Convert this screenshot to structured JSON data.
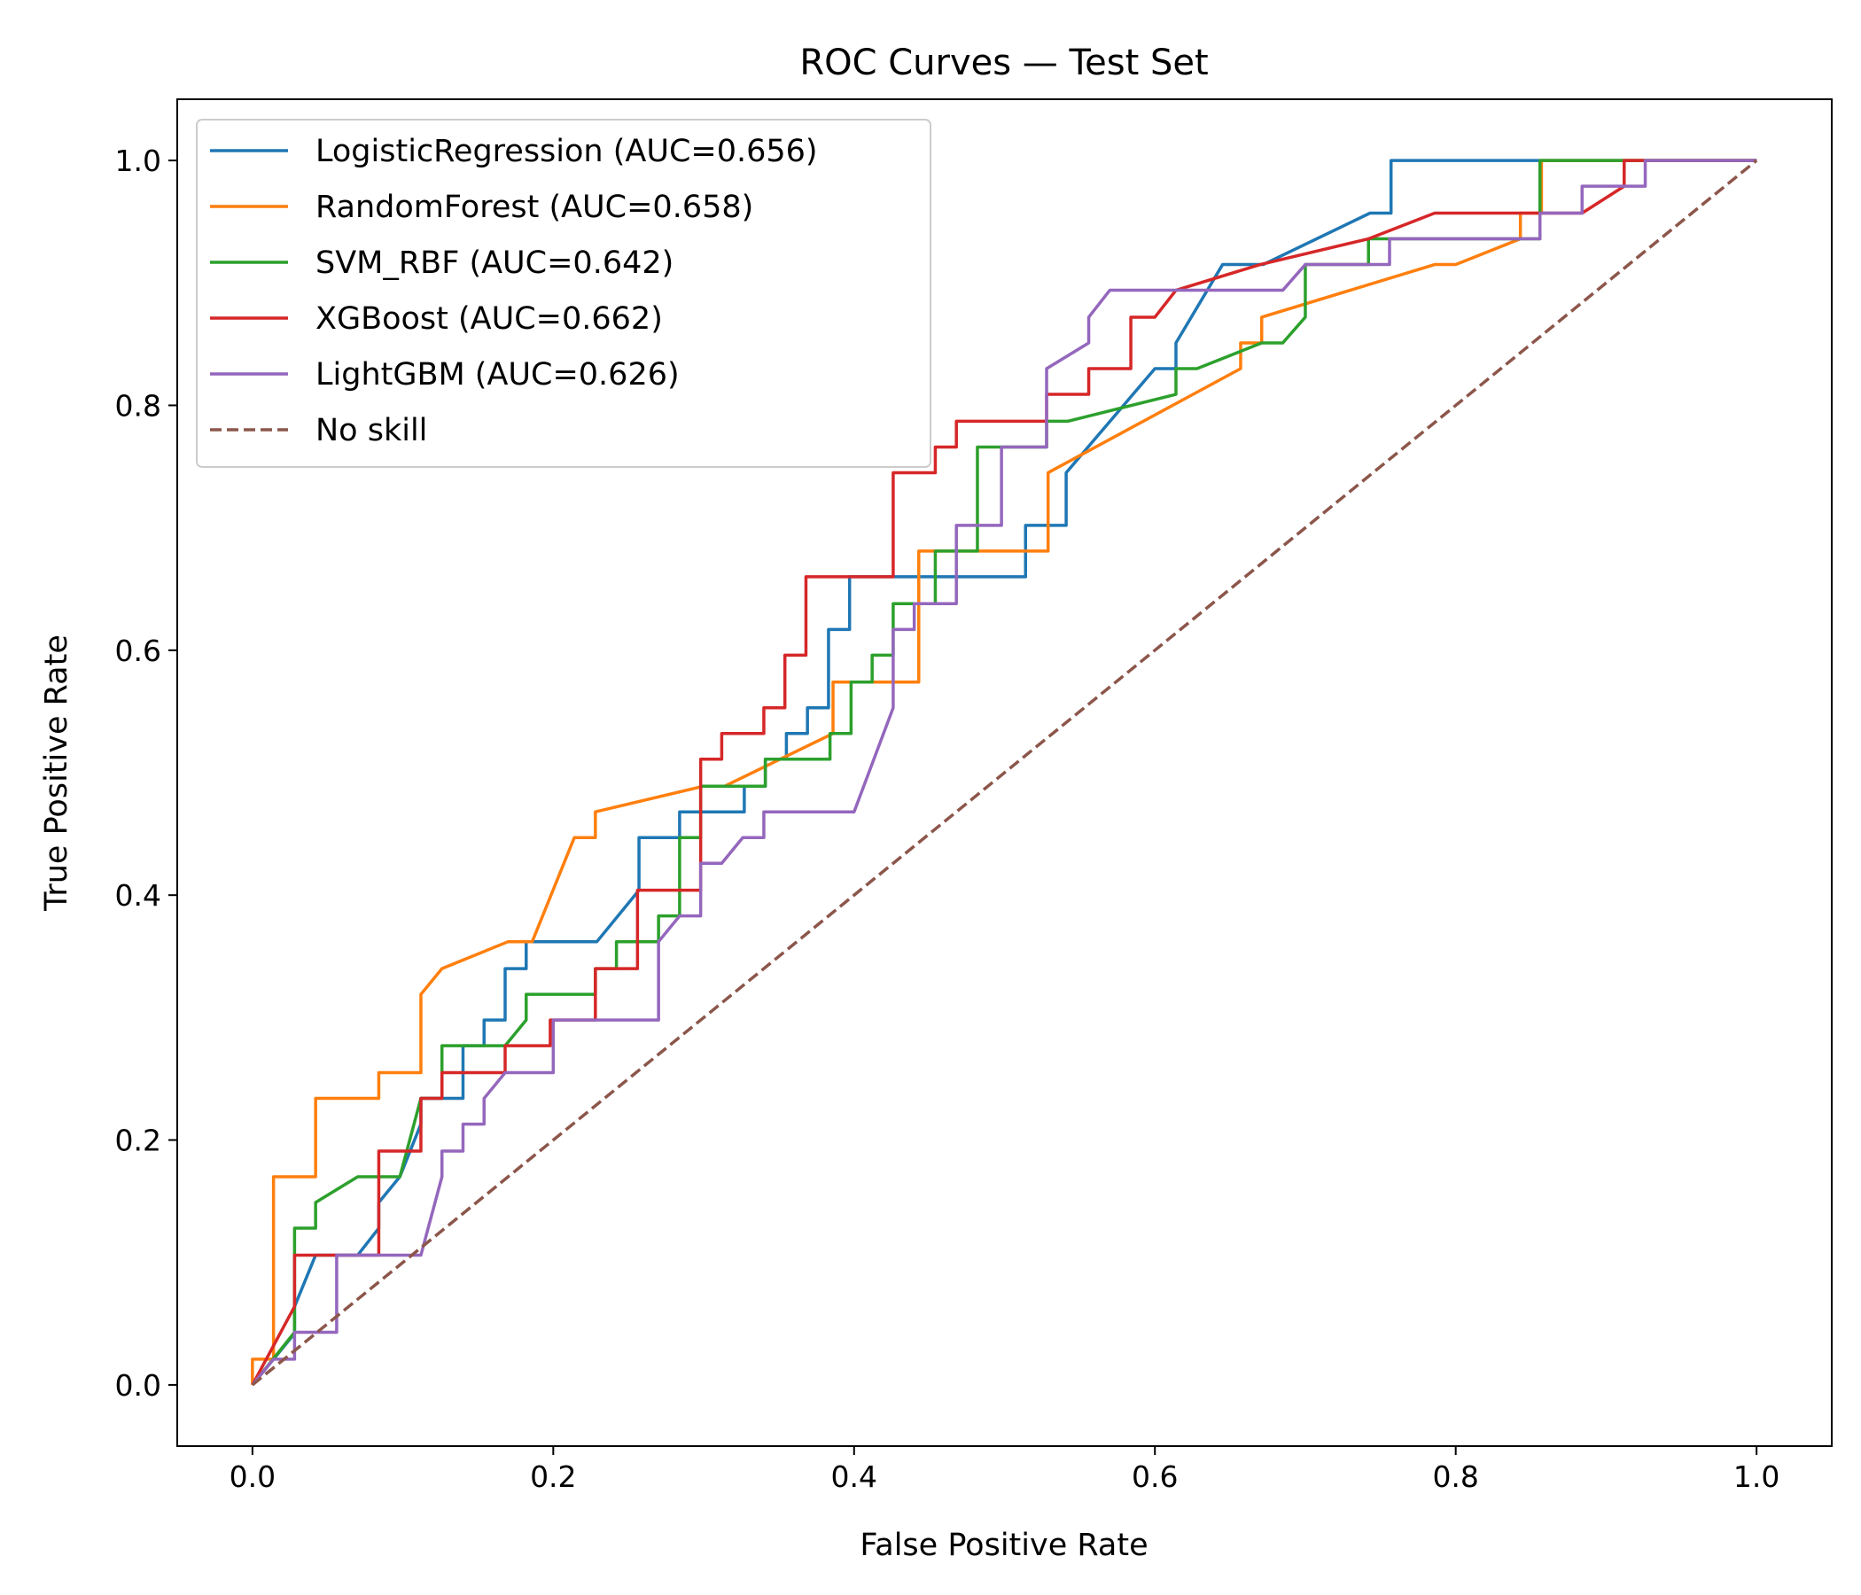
{
  "chart_data": {
    "type": "line",
    "title": "ROC Curves — Test Set",
    "xlabel": "False Positive Rate",
    "ylabel": "True Positive Rate",
    "xlim": [
      -0.05,
      1.05
    ],
    "ylim": [
      -0.05,
      1.05
    ],
    "xticks": [
      "0.0",
      "0.2",
      "0.4",
      "0.6",
      "0.8",
      "1.0"
    ],
    "yticks": [
      "0.0",
      "0.2",
      "0.4",
      "0.6",
      "0.8",
      "1.0"
    ],
    "legend_position": "upper-left",
    "grid": false,
    "series": [
      {
        "name": "LogisticRegression (AUC=0.656)",
        "color": "#1f77b4",
        "dash": "solid",
        "points": [
          [
            0,
            0
          ],
          [
            0.014,
            0.021
          ],
          [
            0.028,
            0.042
          ],
          [
            0.028,
            0.064
          ],
          [
            0.042,
            0.106
          ],
          [
            0.07,
            0.106
          ],
          [
            0.084,
            0.128
          ],
          [
            0.084,
            0.149
          ],
          [
            0.098,
            0.17
          ],
          [
            0.112,
            0.213
          ],
          [
            0.112,
            0.234
          ],
          [
            0.14,
            0.234
          ],
          [
            0.14,
            0.277
          ],
          [
            0.154,
            0.277
          ],
          [
            0.154,
            0.298
          ],
          [
            0.168,
            0.298
          ],
          [
            0.168,
            0.34
          ],
          [
            0.182,
            0.34
          ],
          [
            0.182,
            0.362
          ],
          [
            0.229,
            0.362
          ],
          [
            0.257,
            0.404
          ],
          [
            0.257,
            0.447
          ],
          [
            0.284,
            0.447
          ],
          [
            0.284,
            0.468
          ],
          [
            0.327,
            0.468
          ],
          [
            0.327,
            0.489
          ],
          [
            0.341,
            0.489
          ],
          [
            0.341,
            0.511
          ],
          [
            0.355,
            0.511
          ],
          [
            0.355,
            0.532
          ],
          [
            0.369,
            0.532
          ],
          [
            0.369,
            0.553
          ],
          [
            0.383,
            0.553
          ],
          [
            0.383,
            0.617
          ],
          [
            0.397,
            0.617
          ],
          [
            0.397,
            0.66
          ],
          [
            0.514,
            0.66
          ],
          [
            0.514,
            0.702
          ],
          [
            0.541,
            0.702
          ],
          [
            0.541,
            0.745
          ],
          [
            0.6,
            0.83
          ],
          [
            0.614,
            0.83
          ],
          [
            0.614,
            0.851
          ],
          [
            0.645,
            0.915
          ],
          [
            0.672,
            0.915
          ],
          [
            0.743,
            0.957
          ],
          [
            0.757,
            0.957
          ],
          [
            0.757,
            1.0
          ],
          [
            1.0,
            1.0
          ]
        ]
      },
      {
        "name": "RandomForest (AUC=0.658)",
        "color": "#ff7f0e",
        "dash": "solid",
        "points": [
          [
            0,
            0
          ],
          [
            0,
            0.021
          ],
          [
            0.014,
            0.021
          ],
          [
            0.014,
            0.17
          ],
          [
            0.042,
            0.17
          ],
          [
            0.042,
            0.234
          ],
          [
            0.084,
            0.234
          ],
          [
            0.084,
            0.255
          ],
          [
            0.112,
            0.255
          ],
          [
            0.112,
            0.319
          ],
          [
            0.126,
            0.34
          ],
          [
            0.17,
            0.362
          ],
          [
            0.186,
            0.362
          ],
          [
            0.214,
            0.447
          ],
          [
            0.228,
            0.447
          ],
          [
            0.228,
            0.468
          ],
          [
            0.3,
            0.489
          ],
          [
            0.314,
            0.489
          ],
          [
            0.386,
            0.532
          ],
          [
            0.386,
            0.574
          ],
          [
            0.443,
            0.574
          ],
          [
            0.443,
            0.681
          ],
          [
            0.529,
            0.681
          ],
          [
            0.529,
            0.745
          ],
          [
            0.657,
            0.83
          ],
          [
            0.657,
            0.851
          ],
          [
            0.671,
            0.851
          ],
          [
            0.671,
            0.872
          ],
          [
            0.786,
            0.915
          ],
          [
            0.8,
            0.915
          ],
          [
            0.843,
            0.936
          ],
          [
            0.843,
            0.957
          ],
          [
            0.857,
            0.957
          ],
          [
            0.857,
            1.0
          ],
          [
            1.0,
            1.0
          ]
        ]
      },
      {
        "name": "SVM_RBF (AUC=0.642)",
        "color": "#2ca02c",
        "dash": "solid",
        "points": [
          [
            0,
            0
          ],
          [
            0.028,
            0.043
          ],
          [
            0.028,
            0.128
          ],
          [
            0.042,
            0.128
          ],
          [
            0.042,
            0.149
          ],
          [
            0.07,
            0.17
          ],
          [
            0.098,
            0.17
          ],
          [
            0.112,
            0.234
          ],
          [
            0.126,
            0.234
          ],
          [
            0.126,
            0.277
          ],
          [
            0.168,
            0.277
          ],
          [
            0.182,
            0.298
          ],
          [
            0.182,
            0.319
          ],
          [
            0.228,
            0.319
          ],
          [
            0.228,
            0.34
          ],
          [
            0.242,
            0.34
          ],
          [
            0.242,
            0.362
          ],
          [
            0.27,
            0.362
          ],
          [
            0.27,
            0.383
          ],
          [
            0.284,
            0.383
          ],
          [
            0.284,
            0.447
          ],
          [
            0.298,
            0.447
          ],
          [
            0.298,
            0.489
          ],
          [
            0.341,
            0.489
          ],
          [
            0.341,
            0.511
          ],
          [
            0.384,
            0.511
          ],
          [
            0.384,
            0.532
          ],
          [
            0.398,
            0.532
          ],
          [
            0.398,
            0.574
          ],
          [
            0.412,
            0.574
          ],
          [
            0.412,
            0.596
          ],
          [
            0.426,
            0.596
          ],
          [
            0.426,
            0.638
          ],
          [
            0.454,
            0.638
          ],
          [
            0.454,
            0.681
          ],
          [
            0.482,
            0.681
          ],
          [
            0.482,
            0.766
          ],
          [
            0.528,
            0.766
          ],
          [
            0.528,
            0.787
          ],
          [
            0.542,
            0.787
          ],
          [
            0.614,
            0.809
          ],
          [
            0.614,
            0.83
          ],
          [
            0.628,
            0.83
          ],
          [
            0.671,
            0.851
          ],
          [
            0.685,
            0.851
          ],
          [
            0.7,
            0.872
          ],
          [
            0.7,
            0.915
          ],
          [
            0.742,
            0.915
          ],
          [
            0.742,
            0.936
          ],
          [
            0.856,
            0.936
          ],
          [
            0.856,
            1.0
          ],
          [
            1.0,
            1.0
          ]
        ]
      },
      {
        "name": "XGBoost (AUC=0.662)",
        "color": "#d62728",
        "dash": "solid",
        "points": [
          [
            0,
            0
          ],
          [
            0.028,
            0.064
          ],
          [
            0.028,
            0.106
          ],
          [
            0.084,
            0.106
          ],
          [
            0.084,
            0.191
          ],
          [
            0.112,
            0.191
          ],
          [
            0.112,
            0.234
          ],
          [
            0.126,
            0.234
          ],
          [
            0.126,
            0.255
          ],
          [
            0.168,
            0.255
          ],
          [
            0.168,
            0.277
          ],
          [
            0.198,
            0.277
          ],
          [
            0.198,
            0.298
          ],
          [
            0.228,
            0.298
          ],
          [
            0.228,
            0.34
          ],
          [
            0.256,
            0.34
          ],
          [
            0.256,
            0.404
          ],
          [
            0.298,
            0.404
          ],
          [
            0.298,
            0.511
          ],
          [
            0.312,
            0.511
          ],
          [
            0.312,
            0.532
          ],
          [
            0.34,
            0.532
          ],
          [
            0.34,
            0.553
          ],
          [
            0.354,
            0.553
          ],
          [
            0.354,
            0.596
          ],
          [
            0.368,
            0.596
          ],
          [
            0.368,
            0.66
          ],
          [
            0.426,
            0.66
          ],
          [
            0.426,
            0.745
          ],
          [
            0.454,
            0.745
          ],
          [
            0.454,
            0.766
          ],
          [
            0.468,
            0.766
          ],
          [
            0.468,
            0.787
          ],
          [
            0.528,
            0.787
          ],
          [
            0.528,
            0.809
          ],
          [
            0.556,
            0.809
          ],
          [
            0.556,
            0.83
          ],
          [
            0.584,
            0.83
          ],
          [
            0.584,
            0.872
          ],
          [
            0.6,
            0.872
          ],
          [
            0.614,
            0.894
          ],
          [
            0.67,
            0.915
          ],
          [
            0.742,
            0.936
          ],
          [
            0.786,
            0.957
          ],
          [
            0.884,
            0.957
          ],
          [
            0.912,
            0.979
          ],
          [
            0.912,
            1.0
          ],
          [
            1.0,
            1.0
          ]
        ]
      },
      {
        "name": "LightGBM (AUC=0.626)",
        "color": "#9467bd",
        "dash": "solid",
        "points": [
          [
            0,
            0
          ],
          [
            0.014,
            0.021
          ],
          [
            0.028,
            0.021
          ],
          [
            0.028,
            0.043
          ],
          [
            0.056,
            0.043
          ],
          [
            0.056,
            0.106
          ],
          [
            0.112,
            0.106
          ],
          [
            0.126,
            0.17
          ],
          [
            0.126,
            0.191
          ],
          [
            0.14,
            0.191
          ],
          [
            0.14,
            0.213
          ],
          [
            0.154,
            0.213
          ],
          [
            0.154,
            0.234
          ],
          [
            0.168,
            0.255
          ],
          [
            0.2,
            0.255
          ],
          [
            0.2,
            0.298
          ],
          [
            0.27,
            0.298
          ],
          [
            0.27,
            0.362
          ],
          [
            0.284,
            0.383
          ],
          [
            0.298,
            0.383
          ],
          [
            0.298,
            0.426
          ],
          [
            0.312,
            0.426
          ],
          [
            0.326,
            0.447
          ],
          [
            0.34,
            0.447
          ],
          [
            0.34,
            0.468
          ],
          [
            0.4,
            0.468
          ],
          [
            0.426,
            0.553
          ],
          [
            0.426,
            0.617
          ],
          [
            0.44,
            0.617
          ],
          [
            0.44,
            0.638
          ],
          [
            0.468,
            0.638
          ],
          [
            0.468,
            0.702
          ],
          [
            0.498,
            0.702
          ],
          [
            0.498,
            0.766
          ],
          [
            0.528,
            0.766
          ],
          [
            0.528,
            0.83
          ],
          [
            0.556,
            0.851
          ],
          [
            0.556,
            0.872
          ],
          [
            0.57,
            0.894
          ],
          [
            0.685,
            0.894
          ],
          [
            0.7,
            0.915
          ],
          [
            0.756,
            0.915
          ],
          [
            0.756,
            0.936
          ],
          [
            0.856,
            0.936
          ],
          [
            0.856,
            0.957
          ],
          [
            0.884,
            0.957
          ],
          [
            0.884,
            0.979
          ],
          [
            0.926,
            0.979
          ],
          [
            0.926,
            1.0
          ],
          [
            1.0,
            1.0
          ]
        ]
      },
      {
        "name": "No skill",
        "color": "#8c564b",
        "dash": "dashed",
        "points": [
          [
            0,
            0
          ],
          [
            1,
            1
          ]
        ]
      }
    ]
  }
}
